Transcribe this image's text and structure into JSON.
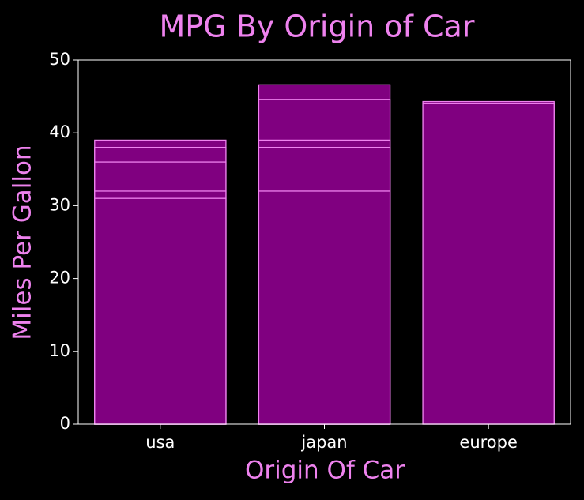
{
  "chart_data": {
    "type": "bar",
    "title": "MPG By Origin of Car",
    "x_label": "Origin Of Car",
    "y_label": "Miles Per Gallon",
    "categories": [
      "usa",
      "japan",
      "europe"
    ],
    "values": [
      [
        39,
        38,
        36,
        32,
        31
      ],
      [
        46.6,
        44.6,
        39,
        38,
        32
      ],
      [
        44.3,
        44
      ]
    ],
    "color": "#800080",
    "edge_color": "#ee82ee",
    "title_color": "#ee82ee",
    "ylim": [
      0,
      50
    ],
    "yticks": [
      0,
      10,
      20,
      30,
      40,
      50
    ]
  }
}
